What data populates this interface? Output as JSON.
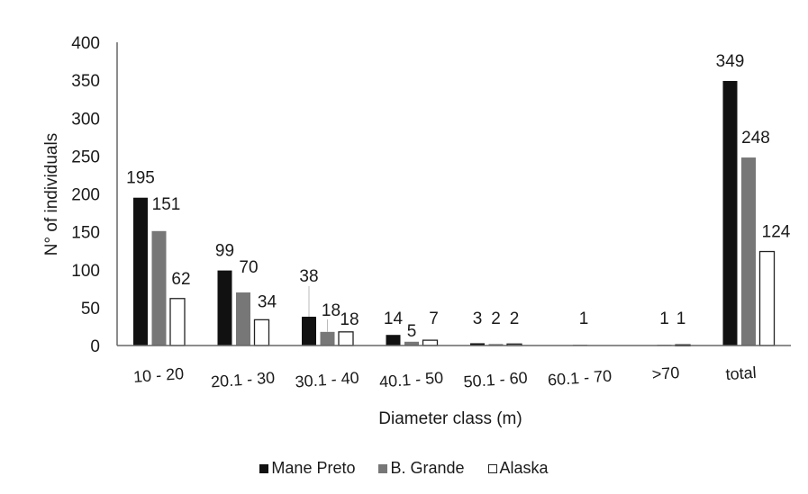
{
  "chart_data": {
    "type": "bar",
    "title": "",
    "xlabel": "Diameter class (m)",
    "ylabel": "N° of individuals",
    "ylim": [
      0,
      400
    ],
    "yticks": [
      0,
      50,
      100,
      150,
      200,
      250,
      300,
      350,
      400
    ],
    "grid": false,
    "legend_position": "bottom",
    "categories": [
      "10 - 20",
      "20.1 - 30",
      "30.1 - 40",
      "40.1 - 50",
      "50.1 - 60",
      "60.1 - 70",
      ">70",
      "total"
    ],
    "series": [
      {
        "name": "Mane Preto",
        "color": "#111111",
        "stroke": "#111111",
        "values": [
          195,
          99,
          38,
          14,
          3,
          0,
          0,
          349
        ],
        "labels": [
          "195",
          "99",
          "38",
          "14",
          "3",
          "",
          "",
          "349"
        ]
      },
      {
        "name": "B. Grande",
        "color": "#777777",
        "stroke": "#777777",
        "values": [
          151,
          70,
          18,
          5,
          2,
          1,
          1,
          248
        ],
        "labels": [
          "151",
          "70",
          "18",
          "5",
          "2",
          "1",
          "1",
          "248"
        ]
      },
      {
        "name": "Alaska",
        "color": "#ffffff",
        "stroke": "#222222",
        "values": [
          62,
          34,
          18,
          7,
          2,
          0,
          1,
          124
        ],
        "labels": [
          "62",
          "34",
          "18",
          "7",
          "2",
          "",
          "1",
          "124"
        ]
      }
    ]
  },
  "legend": {
    "items": [
      {
        "label": "Mane Preto",
        "color": "#111111",
        "border": "#111111"
      },
      {
        "label": "B. Grande",
        "color": "#777777",
        "border": "#777777"
      },
      {
        "label": "Alaska",
        "color": "#ffffff",
        "border": "#222222"
      }
    ]
  }
}
